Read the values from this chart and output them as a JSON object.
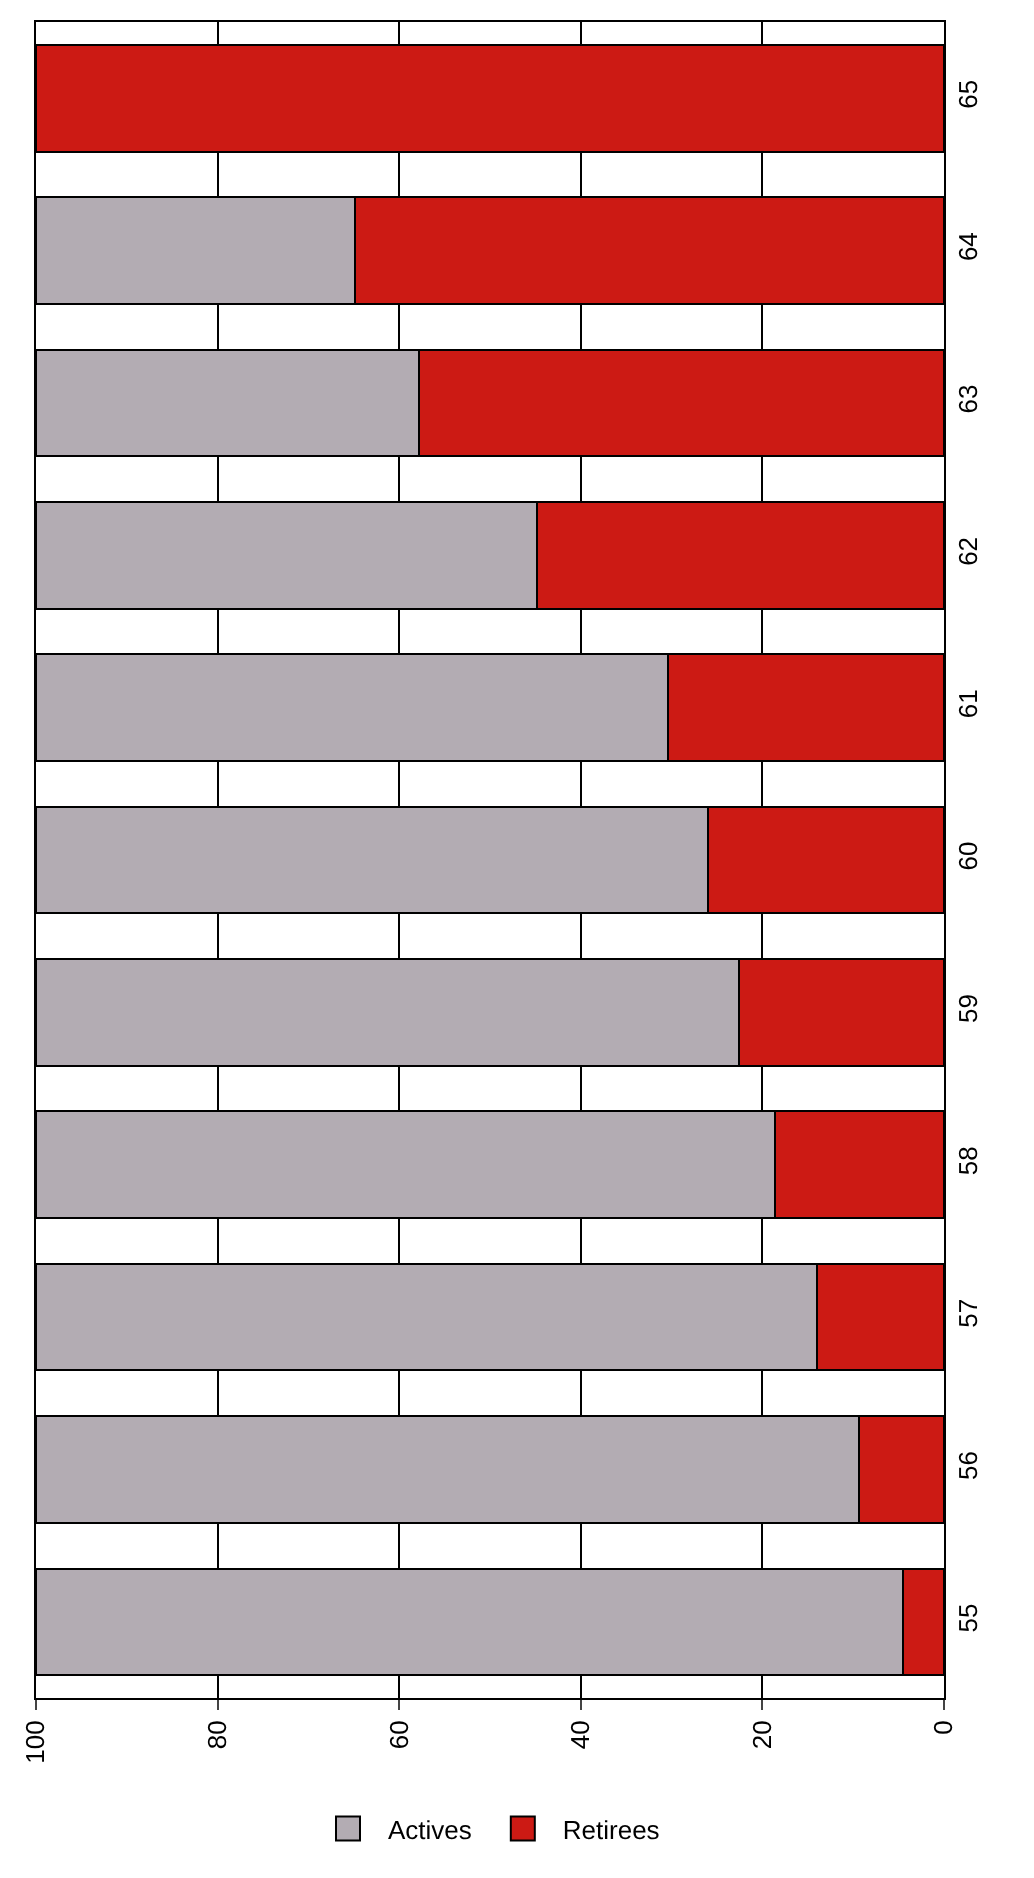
{
  "chart_data": {
    "type": "bar",
    "orientation": "horizontal",
    "stacked": true,
    "categories": [
      "65",
      "64",
      "63",
      "62",
      "61",
      "60",
      "59",
      "58",
      "57",
      "56",
      "55"
    ],
    "series": [
      {
        "name": "Retirees",
        "color": "#cc1a14",
        "values": [
          100,
          64.9,
          57.8,
          44.8,
          30.4,
          26,
          22.6,
          18.6,
          14,
          9.4,
          4.5
        ]
      },
      {
        "name": "Actives",
        "color": "#b3acb3",
        "values": [
          null,
          35.1,
          42.2,
          55.2,
          69.6,
          74,
          77.4,
          81.4,
          86,
          90.6,
          95.5
        ]
      }
    ],
    "xlim": [
      100,
      0
    ],
    "xticks": [
      100,
      80,
      60,
      40,
      20,
      0
    ],
    "grid": "x",
    "legend": "bottom"
  }
}
